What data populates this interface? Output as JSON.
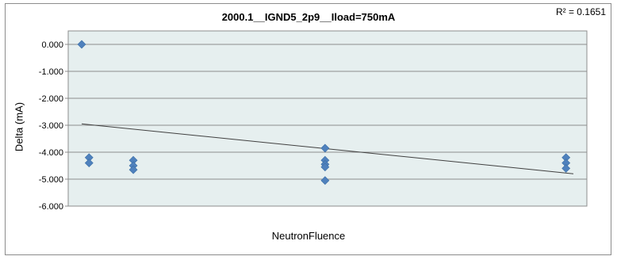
{
  "chart_data": {
    "type": "scatter",
    "title": "2000.1__IGND5_2p9__Iload=750mA",
    "annotation": "R² = 0.1651",
    "xlabel": "NeutronFluence",
    "ylabel": "Delta (mA)",
    "ylim": [
      -6.0,
      0.5
    ],
    "yticks": [
      "0.000",
      "-1.000",
      "-2.000",
      "-3.000",
      "-4.000",
      "-5.000",
      "-6.000"
    ],
    "ytick_values": [
      0,
      -1,
      -2,
      -3,
      -4,
      -5,
      -6
    ],
    "xlim": [
      0,
      100
    ],
    "grid": true,
    "series": [
      {
        "marker": "diamond",
        "color": "#4f81bd",
        "points": [
          {
            "x": 0,
            "y": 0.0
          },
          {
            "x": 1.5,
            "y": -4.2
          },
          {
            "x": 1.5,
            "y": -4.4
          },
          {
            "x": 10.5,
            "y": -4.3
          },
          {
            "x": 10.5,
            "y": -4.5
          },
          {
            "x": 10.5,
            "y": -4.65
          },
          {
            "x": 49.5,
            "y": -3.85
          },
          {
            "x": 49.5,
            "y": -4.3
          },
          {
            "x": 49.5,
            "y": -4.45
          },
          {
            "x": 49.5,
            "y": -4.55
          },
          {
            "x": 49.5,
            "y": -5.05
          },
          {
            "x": 98.5,
            "y": -4.2
          },
          {
            "x": 98.5,
            "y": -4.4
          },
          {
            "x": 98.5,
            "y": -4.6
          }
        ]
      }
    ],
    "trendline": {
      "type": "linear",
      "color": "#404040",
      "y_at_xmin": -2.95,
      "y_at_xmax": -4.8
    }
  }
}
